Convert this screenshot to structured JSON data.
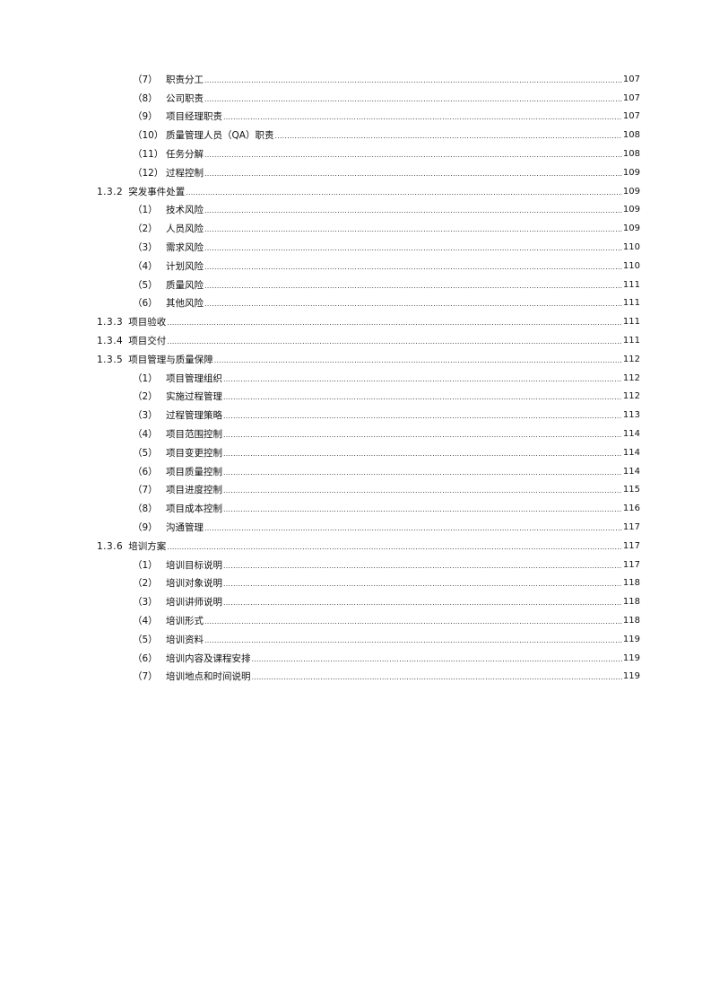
{
  "toc": [
    {
      "level": 2,
      "num": "（7）",
      "title": "职责分工",
      "page": "107"
    },
    {
      "level": 2,
      "num": "（8）",
      "title": "公司职责",
      "page": "107"
    },
    {
      "level": 2,
      "num": "（9）",
      "title": "项目经理职责",
      "page": "107"
    },
    {
      "level": 2,
      "num": "（10）",
      "title": "质量管理人员（QA）职责",
      "page": "108"
    },
    {
      "level": 2,
      "num": "（11）",
      "title": "任务分解",
      "page": "108"
    },
    {
      "level": 2,
      "num": "（12）",
      "title": "过程控制",
      "page": "109"
    },
    {
      "level": 1,
      "num": "1.3.2",
      "title": "突发事件处置",
      "page": "109"
    },
    {
      "level": 2,
      "num": "（1）",
      "title": "技术风险",
      "page": "109"
    },
    {
      "level": 2,
      "num": "（2）",
      "title": "人员风险",
      "page": "109"
    },
    {
      "level": 2,
      "num": "（3）",
      "title": "需求风险",
      "page": "110"
    },
    {
      "level": 2,
      "num": "（4）",
      "title": "计划风险",
      "page": "110"
    },
    {
      "level": 2,
      "num": "（5）",
      "title": "质量风险",
      "page": "111"
    },
    {
      "level": 2,
      "num": "（6）",
      "title": "其他风险",
      "page": "111"
    },
    {
      "level": 1,
      "num": "1.3.3",
      "title": "项目验收",
      "page": "111"
    },
    {
      "level": 1,
      "num": "1.3.4",
      "title": "项目交付",
      "page": "111"
    },
    {
      "level": 1,
      "num": "1.3.5",
      "title": "项目管理与质量保障",
      "page": "112"
    },
    {
      "level": 2,
      "num": "（1）",
      "title": "项目管理组织",
      "page": "112"
    },
    {
      "level": 2,
      "num": "（2）",
      "title": "实施过程管理",
      "page": "112"
    },
    {
      "level": 2,
      "num": "（3）",
      "title": "过程管理策略",
      "page": "113"
    },
    {
      "level": 2,
      "num": "（4）",
      "title": "项目范围控制",
      "page": "114"
    },
    {
      "level": 2,
      "num": "（5）",
      "title": "项目变更控制",
      "page": "114"
    },
    {
      "level": 2,
      "num": "（6）",
      "title": "项目质量控制",
      "page": "114"
    },
    {
      "level": 2,
      "num": "（7）",
      "title": "项目进度控制",
      "page": "115"
    },
    {
      "level": 2,
      "num": "（8）",
      "title": "项目成本控制",
      "page": "116"
    },
    {
      "level": 2,
      "num": "（9）",
      "title": "沟通管理",
      "page": "117"
    },
    {
      "level": 1,
      "num": "1.3.6",
      "title": "培训方案",
      "page": "117"
    },
    {
      "level": 2,
      "num": "（1）",
      "title": "培训目标说明",
      "page": "117"
    },
    {
      "level": 2,
      "num": "（2）",
      "title": "培训对象说明",
      "page": "118"
    },
    {
      "level": 2,
      "num": "（3）",
      "title": "培训讲师说明",
      "page": "118"
    },
    {
      "level": 2,
      "num": "（4）",
      "title": "培训形式",
      "page": "118"
    },
    {
      "level": 2,
      "num": "（5）",
      "title": "培训资料",
      "page": "119"
    },
    {
      "level": 2,
      "num": "（6）",
      "title": "培训内容及课程安排",
      "page": "119"
    },
    {
      "level": 2,
      "num": "（7）",
      "title": "培训地点和时间说明",
      "page": "119"
    }
  ]
}
